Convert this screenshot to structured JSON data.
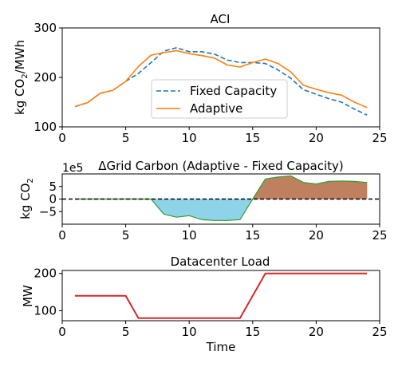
{
  "colors": {
    "fixed": "#1f77b4",
    "adaptive": "#ff7f0e",
    "load": "#d62728",
    "diff_line": "#2ca02c",
    "neg_fill": "#8fd3e8",
    "pos_fill": "#bf8060",
    "zero_line": "#000000"
  },
  "chart_data": [
    {
      "type": "line",
      "title": "ACI",
      "ylabel": "kg CO₂/MWh",
      "xlabel": "",
      "xlim": [
        0,
        25
      ],
      "ylim": [
        100,
        300
      ],
      "xticks": [
        0,
        5,
        10,
        15,
        20,
        25
      ],
      "yticks": [
        100,
        200,
        300
      ],
      "legend": "center",
      "x": [
        1,
        2,
        3,
        4,
        5,
        6,
        7,
        8,
        9,
        10,
        11,
        12,
        13,
        14,
        15,
        16,
        17,
        18,
        19,
        20,
        21,
        22,
        23,
        24
      ],
      "series": [
        {
          "name": "Fixed Capacity",
          "style": "dashed",
          "color_key": "fixed",
          "values": [
            141,
            149,
            168,
            174,
            192,
            208,
            230,
            253,
            260,
            252,
            252,
            247,
            235,
            230,
            230,
            228,
            215,
            198,
            175,
            166,
            157,
            150,
            136,
            124
          ]
        },
        {
          "name": "Adaptive",
          "style": "solid",
          "color_key": "adaptive",
          "values": [
            141,
            149,
            168,
            174,
            192,
            222,
            245,
            250,
            254,
            248,
            244,
            239,
            225,
            221,
            230,
            237,
            228,
            211,
            184,
            176,
            169,
            164,
            150,
            139
          ]
        }
      ]
    },
    {
      "type": "area",
      "title": "ΔGrid Carbon (Adaptive - Fixed Capacity)",
      "ylabel": "kg CO₂",
      "xlabel": "",
      "offset_label": "1e5",
      "xlim": [
        0,
        25
      ],
      "ylim": [
        -10,
        10
      ],
      "xticks": [
        0,
        5,
        10,
        15,
        20,
        25
      ],
      "yticks": [
        -5,
        0,
        5
      ],
      "zero_line": "dashed",
      "x": [
        1,
        2,
        3,
        4,
        5,
        6,
        7,
        8,
        9,
        10,
        11,
        12,
        13,
        14,
        15,
        16,
        17,
        18,
        19,
        20,
        21,
        22,
        23,
        24
      ],
      "values": [
        0,
        0,
        0,
        0,
        0,
        0,
        0,
        -6,
        -7.2,
        -6.6,
        -8.2,
        -8.5,
        -8.5,
        -8.2,
        0,
        8.0,
        8.8,
        9.2,
        6.6,
        6.0,
        7.0,
        7.2,
        7.0,
        6.6
      ]
    },
    {
      "type": "line",
      "title": "Datacenter Load",
      "ylabel": "MW",
      "xlabel": "Time",
      "xlim": [
        0,
        25
      ],
      "ylim": [
        73,
        208
      ],
      "xticks": [
        0,
        5,
        10,
        15,
        20,
        25
      ],
      "yticks": [
        100,
        200
      ],
      "x": [
        1,
        2,
        3,
        4,
        5,
        6,
        7,
        8,
        9,
        10,
        11,
        12,
        13,
        14,
        15,
        16,
        17,
        18,
        19,
        20,
        21,
        22,
        23,
        24
      ],
      "series": [
        {
          "color_key": "load",
          "style": "solid",
          "values": [
            140,
            140,
            140,
            140,
            140,
            80,
            80,
            80,
            80,
            80,
            80,
            80,
            80,
            80,
            140,
            200,
            200,
            200,
            200,
            200,
            200,
            200,
            200,
            200
          ]
        }
      ]
    }
  ]
}
